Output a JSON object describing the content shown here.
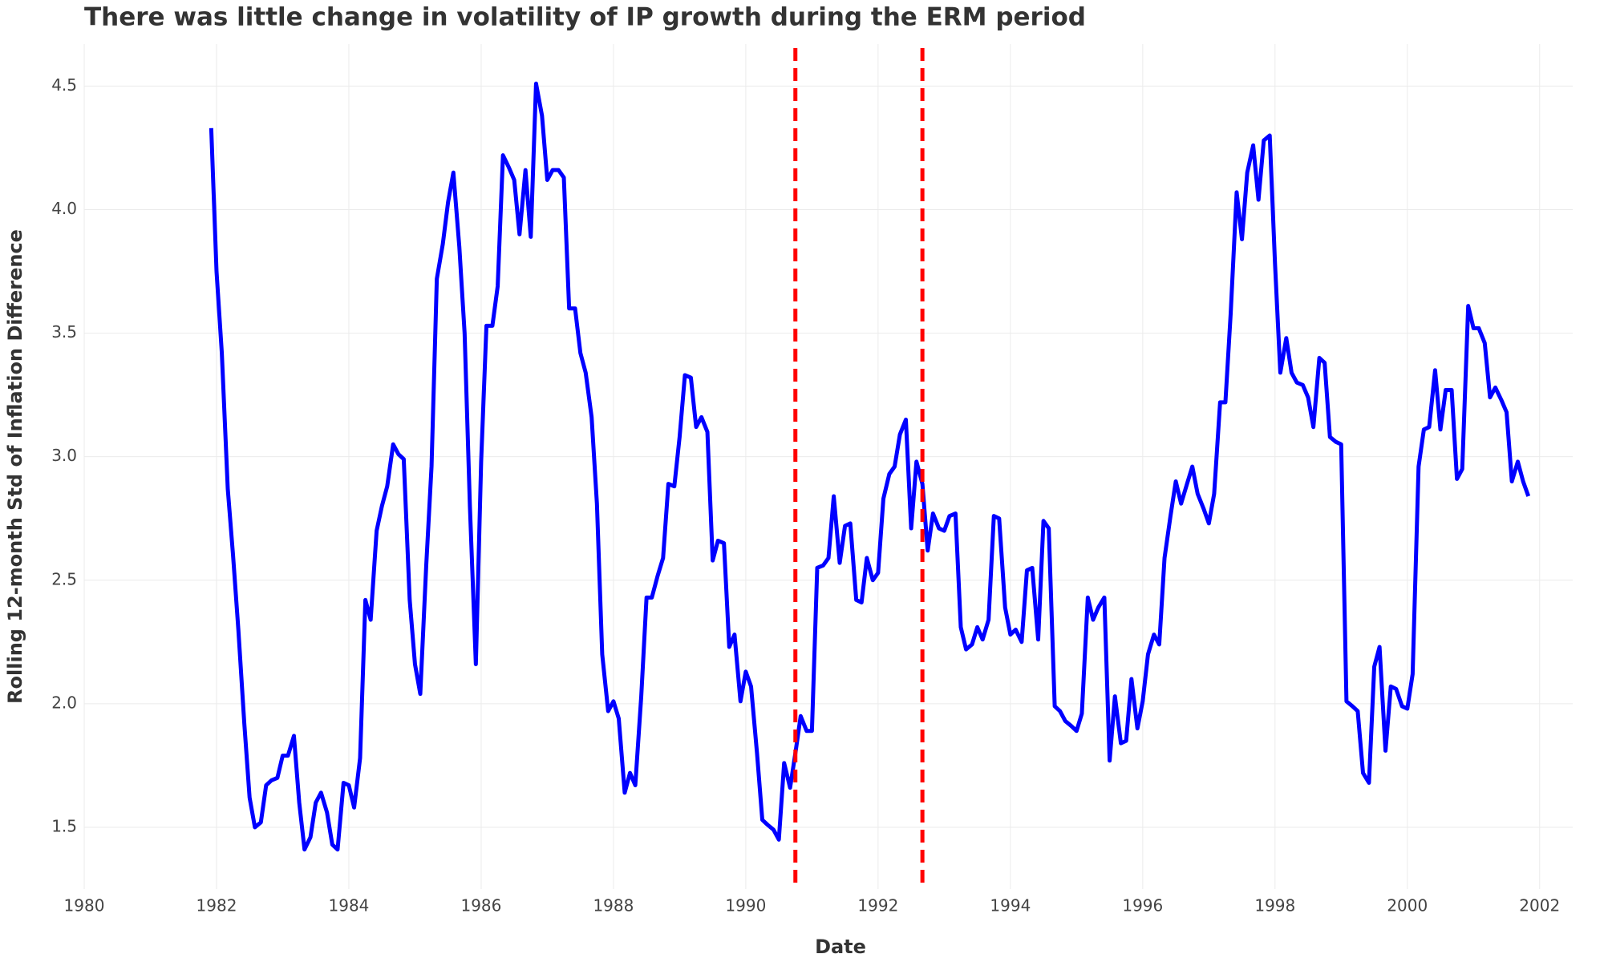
{
  "chart_data": {
    "type": "line",
    "title": "There was little change in volatility of IP growth during the ERM period",
    "xlabel": "Date",
    "ylabel": "Rolling 12-month Std of Inflation Difference",
    "color": "#0000ff",
    "grid": true,
    "xlim": [
      1980,
      2002.5
    ],
    "ylim": [
      1.25,
      4.67
    ],
    "xticks": [
      1980,
      1982,
      1984,
      1986,
      1988,
      1990,
      1992,
      1994,
      1996,
      1998,
      2000,
      2002
    ],
    "yticks": [
      1.5,
      {
        "value": 2,
        "label": "2.0"
      },
      2.5,
      {
        "value": 3,
        "label": "3.0"
      },
      3.5,
      {
        "value": 4,
        "label": "4.0"
      },
      4.5
    ],
    "vlines": [
      {
        "x": 1990.75,
        "color": "#ff0000"
      },
      {
        "x": 1992.67,
        "color": "#ff0000"
      }
    ],
    "x": [
      1981.92,
      1982,
      1982.08,
      1982.17,
      1982.25,
      1982.33,
      1982.42,
      1982.5,
      1982.58,
      1982.67,
      1982.75,
      1982.83,
      1982.92,
      1983,
      1983.08,
      1983.17,
      1983.25,
      1983.33,
      1983.42,
      1983.5,
      1983.58,
      1983.67,
      1983.75,
      1983.83,
      1983.92,
      1984,
      1984.08,
      1984.17,
      1984.25,
      1984.33,
      1984.42,
      1984.5,
      1984.58,
      1984.67,
      1984.75,
      1984.83,
      1984.92,
      1985,
      1985.08,
      1985.17,
      1985.25,
      1985.33,
      1985.42,
      1985.5,
      1985.58,
      1985.67,
      1985.75,
      1985.83,
      1985.92,
      1986,
      1986.08,
      1986.17,
      1986.25,
      1986.33,
      1986.42,
      1986.5,
      1986.58,
      1986.67,
      1986.75,
      1986.83,
      1986.92,
      1987,
      1987.08,
      1987.17,
      1987.25,
      1987.33,
      1987.42,
      1987.5,
      1987.58,
      1987.67,
      1987.75,
      1987.83,
      1987.92,
      1988,
      1988.08,
      1988.17,
      1988.25,
      1988.33,
      1988.42,
      1988.5,
      1988.58,
      1988.67,
      1988.75,
      1988.83,
      1988.92,
      1989,
      1989.08,
      1989.17,
      1989.25,
      1989.33,
      1989.42,
      1989.5,
      1989.58,
      1989.67,
      1989.75,
      1989.83,
      1989.92,
      1990,
      1990.08,
      1990.17,
      1990.25,
      1990.33,
      1990.42,
      1990.5,
      1990.58,
      1990.67,
      1990.75,
      1990.83,
      1990.92,
      1991,
      1991.08,
      1991.17,
      1991.25,
      1991.33,
      1991.42,
      1991.5,
      1991.58,
      1991.67,
      1991.75,
      1991.83,
      1991.92,
      1992,
      1992.08,
      1992.17,
      1992.25,
      1992.33,
      1992.42,
      1992.5,
      1992.58,
      1992.67,
      1992.75,
      1992.83,
      1992.92,
      1993,
      1993.08,
      1993.17,
      1993.25,
      1993.33,
      1993.42,
      1993.5,
      1993.58,
      1993.67,
      1993.75,
      1993.83,
      1993.92,
      1994,
      1994.08,
      1994.17,
      1994.25,
      1994.33,
      1994.42,
      1994.5,
      1994.58,
      1994.67,
      1994.75,
      1994.83,
      1994.92,
      1995,
      1995.08,
      1995.17,
      1995.25,
      1995.33,
      1995.42,
      1995.5,
      1995.58,
      1995.67,
      1995.75,
      1995.83,
      1995.92,
      1996,
      1996.08,
      1996.17,
      1996.25,
      1996.33,
      1996.42,
      1996.5,
      1996.58,
      1996.67,
      1996.75,
      1996.83,
      1996.92,
      1997,
      1997.08,
      1997.17,
      1997.25,
      1997.33,
      1997.42,
      1997.5,
      1997.58,
      1997.67,
      1997.75,
      1997.83,
      1997.92,
      1998,
      1998.08,
      1998.17,
      1998.25,
      1998.33,
      1998.42,
      1998.5,
      1998.58,
      1998.67,
      1998.75,
      1998.83,
      1998.92,
      1999,
      1999.08,
      1999.17,
      1999.25,
      1999.33,
      1999.42,
      1999.5,
      1999.58,
      1999.67,
      1999.75,
      1999.83,
      1999.92,
      2000,
      2000.08,
      2000.17,
      2000.25,
      2000.33,
      2000.42,
      2000.5,
      2000.58,
      2000.67,
      2000.75,
      2000.83,
      2000.92,
      2001,
      2001.08,
      2001.17,
      2001.25,
      2001.33,
      2001.42,
      2001.5,
      2001.58,
      2001.67,
      2001.75,
      2001.83
    ],
    "values": [
      4.33,
      3.75,
      3.42,
      2.87,
      2.6,
      2.3,
      1.92,
      1.62,
      1.5,
      1.52,
      1.67,
      1.69,
      1.7,
      1.79,
      1.79,
      1.87,
      1.6,
      1.41,
      1.46,
      1.6,
      1.64,
      1.56,
      1.43,
      1.41,
      1.68,
      1.67,
      1.58,
      1.78,
      2.42,
      2.34,
      2.7,
      2.8,
      2.88,
      3.05,
      3.01,
      2.99,
      2.42,
      2.16,
      2.04,
      2.56,
      2.96,
      3.72,
      3.86,
      4.03,
      4.15,
      3.85,
      3.5,
      2.8,
      2.16,
      2.98,
      3.53,
      3.53,
      3.69,
      4.22,
      4.17,
      4.12,
      3.9,
      4.16,
      3.89,
      4.51,
      4.38,
      4.12,
      4.16,
      4.16,
      4.13,
      3.6,
      3.6,
      3.42,
      3.34,
      3.16,
      2.81,
      2.2,
      1.97,
      2.01,
      1.94,
      1.64,
      1.72,
      1.67,
      2.03,
      2.43,
      2.43,
      2.52,
      2.59,
      2.89,
      2.88,
      3.08,
      3.33,
      3.32,
      3.12,
      3.16,
      3.1,
      2.58,
      2.66,
      2.65,
      2.23,
      2.28,
      2.01,
      2.13,
      2.07,
      1.8,
      1.53,
      1.51,
      1.49,
      1.45,
      1.76,
      1.66,
      1.8,
      1.95,
      1.89,
      1.89,
      2.55,
      2.56,
      2.59,
      2.84,
      2.57,
      2.72,
      2.73,
      2.42,
      2.41,
      2.59,
      2.5,
      2.53,
      2.83,
      2.93,
      2.96,
      3.09,
      3.15,
      2.71,
      2.98,
      2.89,
      2.62,
      2.77,
      2.71,
      2.7,
      2.76,
      2.77,
      2.31,
      2.22,
      2.24,
      2.31,
      2.26,
      2.34,
      2.76,
      2.75,
      2.39,
      2.28,
      2.3,
      2.25,
      2.54,
      2.55,
      2.26,
      2.74,
      2.71,
      1.99,
      1.97,
      1.93,
      1.91,
      1.89,
      1.96,
      2.43,
      2.34,
      2.39,
      2.43,
      1.77,
      2.03,
      1.84,
      1.85,
      2.1,
      1.9,
      2.01,
      2.2,
      2.28,
      2.24,
      2.59,
      2.76,
      2.9,
      2.81,
      2.89,
      2.96,
      2.85,
      2.79,
      2.73,
      2.85,
      3.22,
      3.22,
      3.58,
      4.07,
      3.88,
      4.15,
      4.26,
      4.04,
      4.28,
      4.3,
      3.78,
      3.34,
      3.48,
      3.34,
      3.3,
      3.29,
      3.24,
      3.12,
      3.4,
      3.38,
      3.08,
      3.06,
      3.05,
      2.01,
      1.99,
      1.97,
      1.72,
      1.68,
      2.15,
      2.23,
      1.81,
      2.07,
      2.06,
      1.99,
      1.98,
      2.12,
      2.96,
      3.11,
      3.12,
      3.35,
      3.11,
      3.27,
      3.27,
      2.91,
      2.95,
      3.61,
      3.52,
      3.52,
      3.46,
      3.24,
      3.28,
      3.23,
      3.18,
      2.9,
      2.98,
      2.9,
      2.84
    ]
  }
}
